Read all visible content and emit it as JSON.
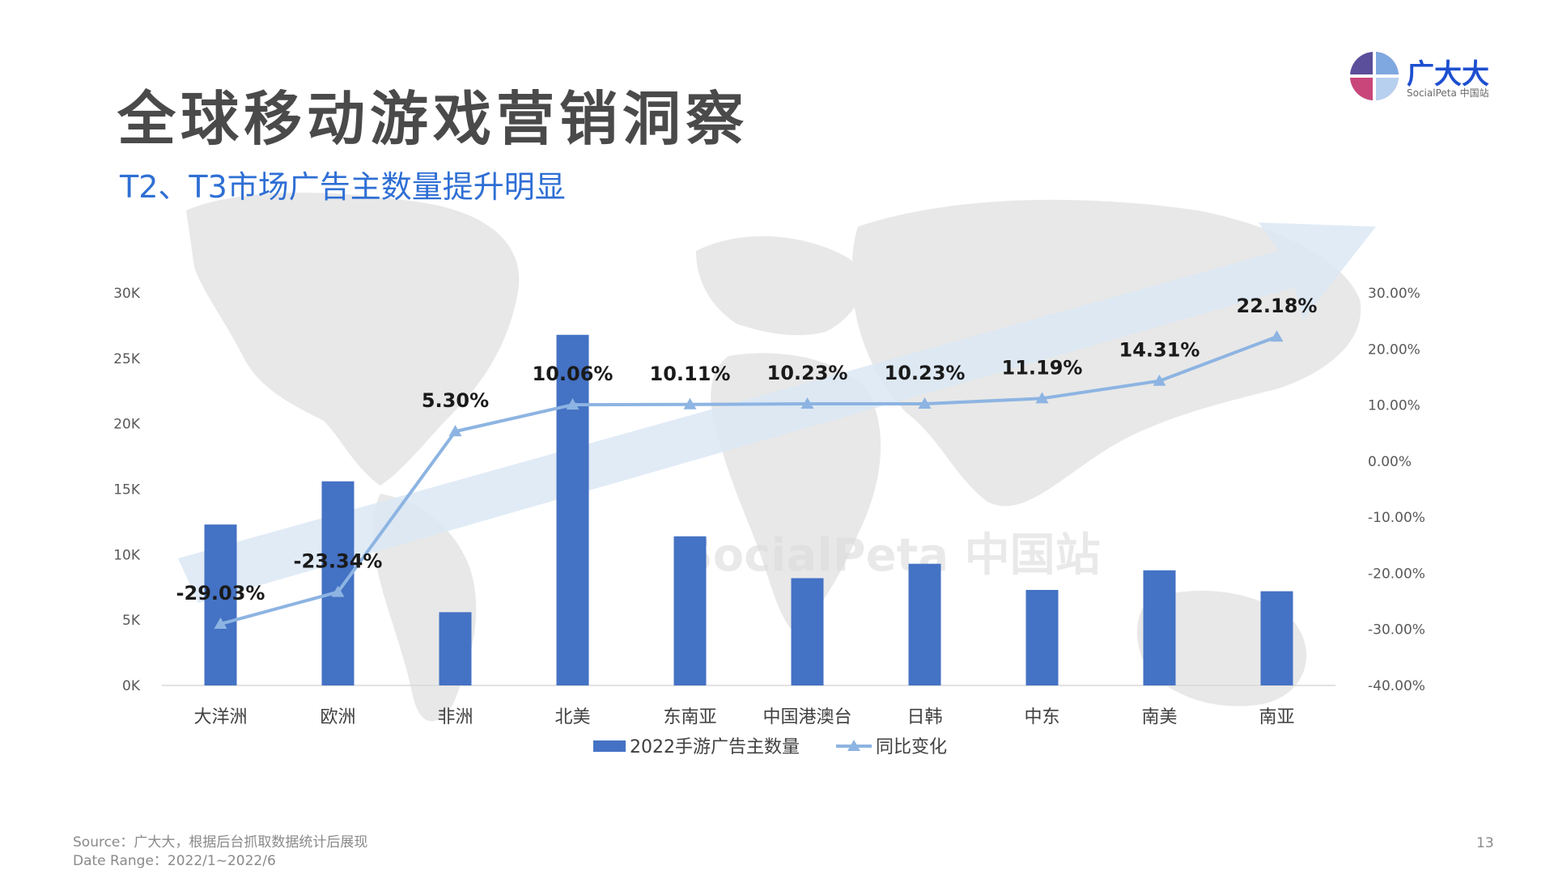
{
  "slide": {
    "title": "全球移动游戏营销洞察",
    "subtitle": "T2、T3市场广告主数量提升明显",
    "logo_text": "广大大",
    "logo_sub": "SocialPeta 中国站",
    "watermark": "SocialPeta 中国站",
    "footer_source": "Source：广大大，根据后台抓取数据统计后展现",
    "footer_date": "Date Range：2022/1~2022/6",
    "page_number": "13"
  },
  "chart_data": {
    "type": "bar",
    "categories": [
      "大洋洲",
      "欧洲",
      "非洲",
      "北美",
      "东南亚",
      "中国港澳台",
      "日韩",
      "中东",
      "南美",
      "南亚"
    ],
    "series": [
      {
        "name": "2022手游广告主数量",
        "type": "bar",
        "axis": "left",
        "color": "#4472c4",
        "values": [
          12300,
          15600,
          5600,
          26800,
          11400,
          8200,
          9300,
          7300,
          8800,
          7200
        ]
      },
      {
        "name": "同比变化",
        "type": "line",
        "axis": "right",
        "color": "#8db4e2",
        "values": [
          -29.03,
          -23.34,
          5.3,
          10.06,
          10.11,
          10.23,
          10.23,
          11.19,
          14.31,
          22.18
        ],
        "labels": [
          "-29.03%",
          "-23.34%",
          "5.30%",
          "10.06%",
          "10.11%",
          "10.23%",
          "10.23%",
          "11.19%",
          "14.31%",
          "22.18%"
        ]
      }
    ],
    "y_left": {
      "ylim": [
        0,
        30000
      ],
      "ticks": [
        "0K",
        "5K",
        "10K",
        "15K",
        "20K",
        "25K",
        "30K"
      ]
    },
    "y_right": {
      "ylim": [
        -40,
        30
      ],
      "ticks": [
        "-40.00%",
        "-30.00%",
        "-20.00%",
        "-10.00%",
        "0.00%",
        "10.00%",
        "20.00%",
        "30.00%"
      ]
    },
    "legend_position": "bottom-center",
    "grid": false
  },
  "colors": {
    "bar": "#4472c4",
    "line": "#8db4e2",
    "title": "#4a4a4a",
    "subtitle": "#2f6fd4",
    "arrow": "#dbe7f5",
    "map": "#e6e6e6"
  },
  "icons": {
    "logo": "socialpeta-logo-icon",
    "background_arrow": "upward-trend-arrow-icon",
    "world_map": "world-map-icon"
  }
}
